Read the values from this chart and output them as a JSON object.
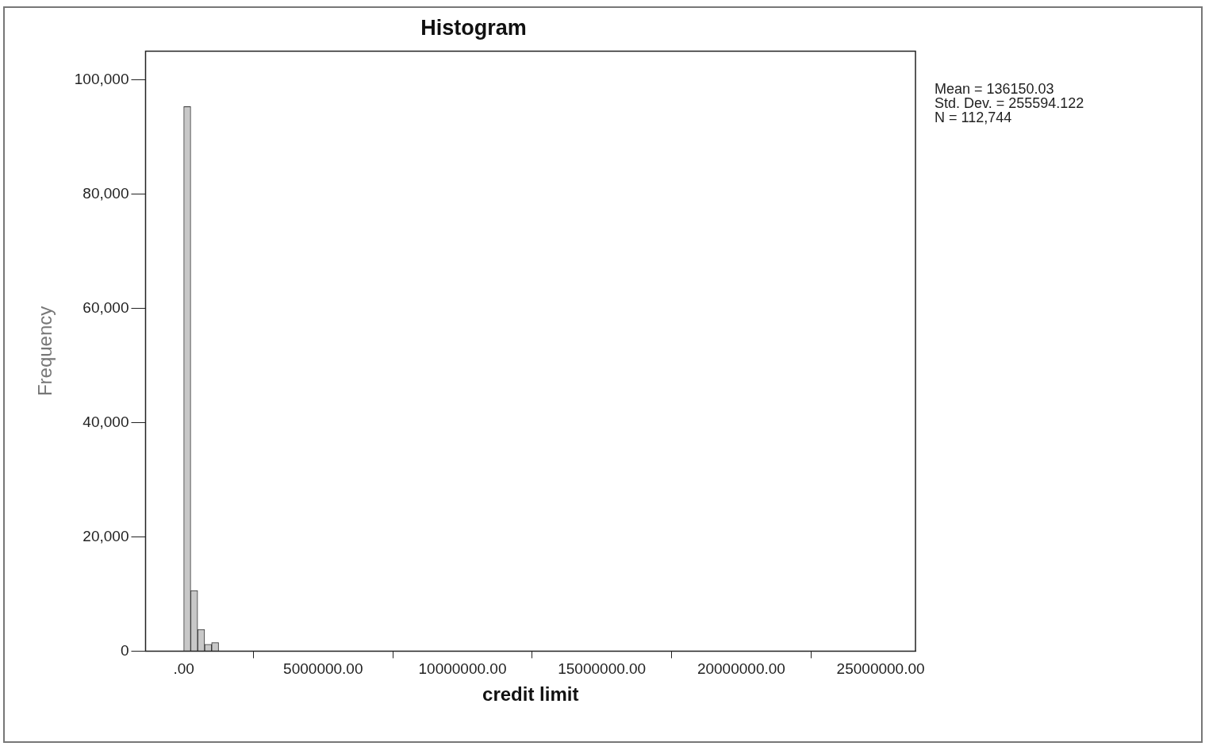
{
  "chart_data": {
    "type": "histogram",
    "title": "Histogram",
    "xlabel": "credit limit",
    "ylabel": "Frequency",
    "bins": [
      0,
      250000,
      500000,
      750000,
      1000000,
      1250000
    ],
    "values": [
      95300,
      10600,
      3800,
      1200,
      1500
    ],
    "color": "#c8c8c8",
    "xlim": [
      -1370000,
      26250000
    ],
    "xticks": [
      {
        "value": 0,
        "label": ".00"
      },
      {
        "value": 5000000,
        "label": "5000000.00"
      },
      {
        "value": 10000000,
        "label": "10000000.00"
      },
      {
        "value": 15000000,
        "label": "15000000.00"
      },
      {
        "value": 20000000,
        "label": "20000000.00"
      },
      {
        "value": 25000000,
        "label": "25000000.00"
      }
    ],
    "ylim": [
      0,
      105000
    ],
    "yticks": [
      {
        "value": 0,
        "label": "0"
      },
      {
        "value": 20000,
        "label": "20,000"
      },
      {
        "value": 40000,
        "label": "40,000"
      },
      {
        "value": 60000,
        "label": "60,000"
      },
      {
        "value": 80000,
        "label": "80,000"
      },
      {
        "value": 100000,
        "label": "100,000"
      }
    ],
    "grid": false,
    "legend": false,
    "annotations": [
      "Mean = 136150.03",
      "Std. Dev. = 255594.122",
      "N = 112,744"
    ]
  }
}
